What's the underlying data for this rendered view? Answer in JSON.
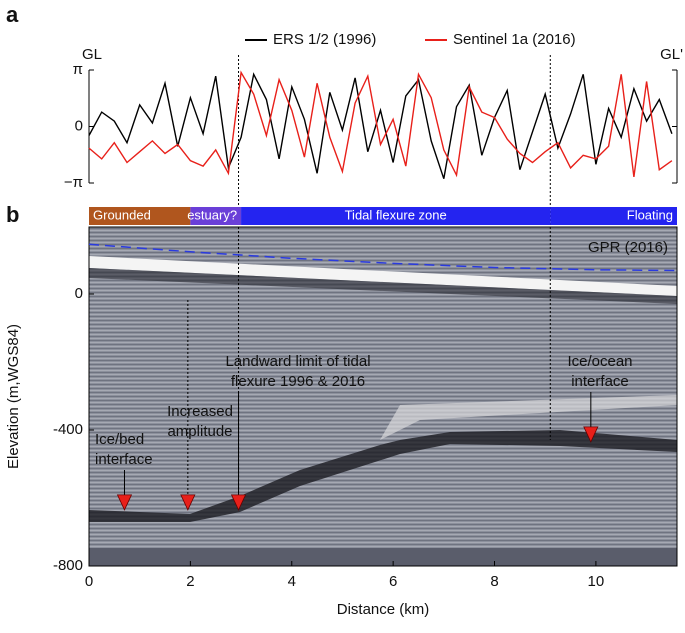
{
  "chart_data": [
    {
      "type": "line",
      "panel": "a",
      "annotations": [
        "GL",
        "GL'"
      ],
      "xlim": [
        0,
        11.6
      ],
      "ylim": [
        -3.1416,
        3.1416
      ],
      "yticks": [
        {
          "value": 3.1416,
          "label": "π"
        },
        0,
        {
          "value": -3.1416,
          "label": "−π"
        }
      ],
      "vlines": [
        2.95,
        9.1
      ],
      "x": [
        0,
        0.25,
        0.5,
        0.75,
        1,
        1.25,
        1.5,
        1.75,
        2,
        2.25,
        2.5,
        2.75,
        3,
        3.25,
        3.5,
        3.75,
        4,
        4.25,
        4.5,
        4.75,
        5,
        5.25,
        5.5,
        5.75,
        6,
        6.25,
        6.5,
        6.75,
        7,
        7.25,
        7.5,
        7.75,
        8,
        8.25,
        8.5,
        8.75,
        9,
        9.25,
        9.5,
        9.75,
        10,
        10.25,
        10.5,
        10.75,
        11,
        11.25,
        11.5
      ],
      "series": [
        {
          "name": "ERS 1/2 (1996)",
          "color": "#000000",
          "values": [
            -0.5,
            0.8,
            0.3,
            -0.9,
            1.2,
            0.2,
            2.4,
            -1.1,
            1.6,
            -0.4,
            2.8,
            -2.3,
            -0.6,
            2.9,
            1.5,
            -1.8,
            2.2,
            0.4,
            -2.6,
            1.9,
            -0.2,
            2.7,
            -1.4,
            0.9,
            -2.0,
            1.7,
            2.6,
            -0.8,
            -2.9,
            1.1,
            2.3,
            -1.6,
            0.5,
            2.0,
            -2.4,
            -0.3,
            1.8,
            -1.2,
            0.7,
            2.9,
            -2.1,
            1.0,
            -0.6,
            2.1,
            0.3,
            1.5,
            -0.4
          ]
        },
        {
          "name": "Sentinel 1a (2016)",
          "color": "#e8201a",
          "values": [
            -1.2,
            -1.8,
            -0.9,
            -2.0,
            -1.4,
            -0.8,
            -1.5,
            -1.0,
            -1.9,
            -2.2,
            -1.3,
            -2.6,
            3.0,
            1.8,
            -0.5,
            2.6,
            0.9,
            -1.7,
            2.4,
            -0.6,
            -2.5,
            1.3,
            2.8,
            -1.0,
            0.4,
            -2.2,
            2.9,
            1.6,
            -1.3,
            -2.7,
            2.2,
            0.8,
            0.5,
            -0.7,
            -1.5,
            -2.0,
            -1.4,
            -0.9,
            -2.3,
            -1.6,
            -1.8,
            -1.1,
            2.9,
            -2.8,
            2.5,
            -2.4,
            -1.9
          ]
        }
      ]
    },
    {
      "type": "line",
      "panel": "b",
      "xlabel": "Distance (km)",
      "ylabel": "Elevation (m,WGS84)",
      "xlim": [
        0,
        11.6
      ],
      "ylim": [
        -800,
        197
      ],
      "xticks": [
        0,
        2,
        4,
        6,
        8,
        10
      ],
      "yticks": [
        0,
        -400,
        -800
      ],
      "zones": [
        {
          "label": "Grounded",
          "start": 0,
          "end": 2.0,
          "color": "#b0561e"
        },
        {
          "label": "estuary?",
          "start": 2.0,
          "end": 3.0,
          "color": "#6a3fd8"
        },
        {
          "label": "Tidal flexure zone",
          "start": 3.0,
          "end": 9.1,
          "color": "#2424f0"
        },
        {
          "label": "Floating",
          "start": 9.1,
          "end": 11.6,
          "color": "#2424f0"
        }
      ],
      "series": [
        {
          "name": "GPR (2016)",
          "color": "#2a3ae0",
          "x": [
            0,
            2,
            4,
            6,
            8,
            10,
            11.6
          ],
          "values": [
            146,
            124,
            105,
            90,
            78,
            71,
            69
          ]
        }
      ],
      "annotations": [
        {
          "lines": [
            "Ice/bed",
            "interface"
          ],
          "arrow": [
            0.7,
            -635
          ]
        },
        {
          "lines": [
            "Increased",
            "amplitude"
          ],
          "arrow": [
            1.95,
            -635
          ]
        },
        {
          "lines": [
            "Landward limit of tidal",
            "flexure 1996 & 2016"
          ],
          "arrow": [
            2.95,
            -635
          ]
        },
        {
          "lines": [
            "Ice/ocean",
            "interface"
          ],
          "arrow": [
            9.9,
            -435
          ]
        }
      ]
    }
  ]
}
